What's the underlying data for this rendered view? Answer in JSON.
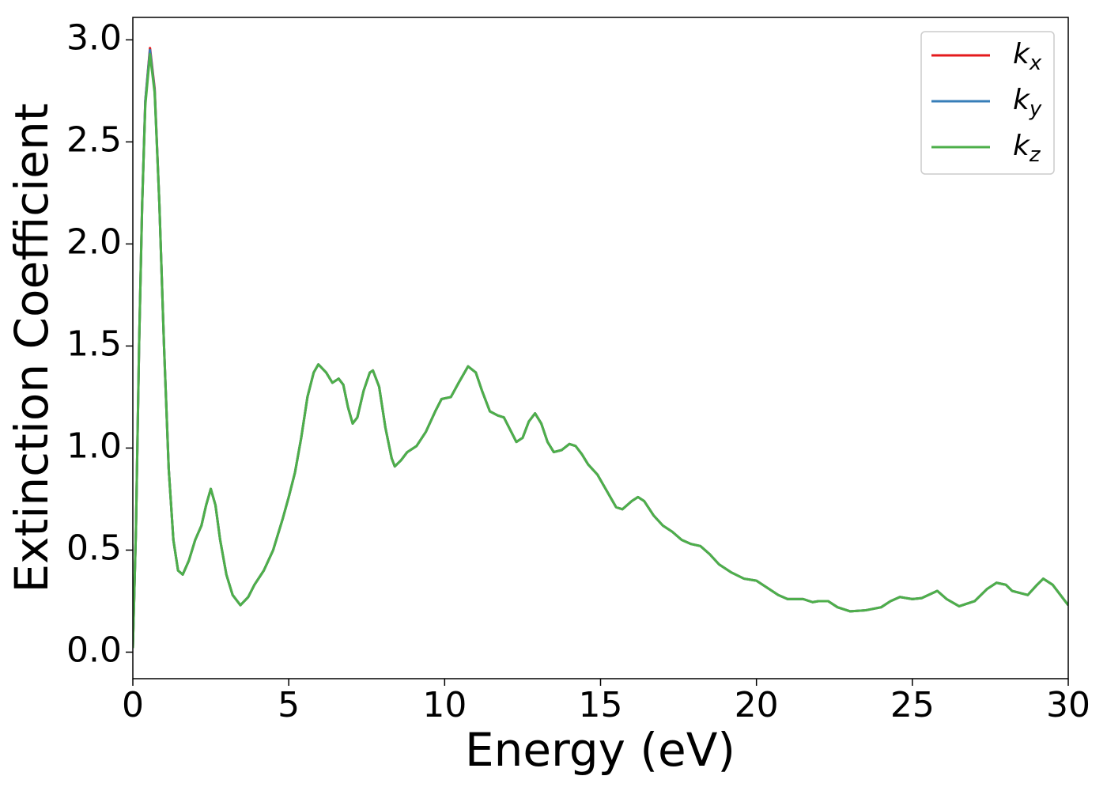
{
  "chart_data": {
    "type": "line",
    "xlabel": "Energy (eV)",
    "ylabel": "Extinction Coefficient",
    "xlim": [
      0,
      30
    ],
    "ylim": [
      -0.13,
      3.11
    ],
    "xticks": [
      0,
      5,
      10,
      15,
      20,
      25,
      30
    ],
    "yticks": [
      {
        "value": 0,
        "label": "0.0"
      },
      0.5,
      {
        "value": 1,
        "label": "1.0"
      },
      1.5,
      {
        "value": 2,
        "label": "2.0"
      },
      2.5,
      {
        "value": 3,
        "label": "3.0"
      }
    ],
    "legend": "upper right",
    "x": [
      0,
      0.1,
      0.2,
      0.3,
      0.4,
      0.55,
      0.7,
      0.85,
      1.0,
      1.15,
      1.3,
      1.45,
      1.6,
      1.8,
      2.0,
      2.2,
      2.35,
      2.5,
      2.65,
      2.8,
      3.0,
      3.2,
      3.45,
      3.7,
      3.9,
      4.2,
      4.5,
      4.8,
      5.0,
      5.2,
      5.4,
      5.6,
      5.8,
      5.95,
      6.2,
      6.4,
      6.6,
      6.75,
      6.9,
      7.05,
      7.2,
      7.4,
      7.6,
      7.7,
      7.9,
      8.1,
      8.3,
      8.4,
      8.6,
      8.8,
      9.1,
      9.4,
      9.7,
      9.9,
      10.2,
      10.45,
      10.75,
      11.0,
      11.2,
      11.45,
      11.7,
      11.9,
      12.1,
      12.3,
      12.5,
      12.7,
      12.9,
      13.1,
      13.3,
      13.5,
      13.75,
      14.0,
      14.2,
      14.4,
      14.6,
      14.9,
      15.2,
      15.5,
      15.7,
      16.0,
      16.2,
      16.4,
      16.7,
      17.0,
      17.3,
      17.6,
      17.9,
      18.2,
      18.5,
      18.8,
      19.2,
      19.6,
      20.0,
      20.3,
      20.7,
      21.0,
      21.5,
      21.8,
      22.0,
      22.3,
      22.6,
      23.0,
      23.5,
      24.0,
      24.3,
      24.6,
      25.0,
      25.3,
      25.8,
      26.1,
      26.5,
      27.0,
      27.4,
      27.7,
      28.0,
      28.2,
      28.7,
      29.0,
      29.2,
      29.5,
      29.8,
      30.0
    ],
    "series": [
      {
        "name": "k_x",
        "color": "#e41a1c",
        "values": [
          0.02,
          0.6,
          1.5,
          2.2,
          2.7,
          2.96,
          2.76,
          2.2,
          1.5,
          0.9,
          0.55,
          0.4,
          0.38,
          0.45,
          0.55,
          0.62,
          0.72,
          0.8,
          0.72,
          0.55,
          0.38,
          0.28,
          0.23,
          0.27,
          0.33,
          0.4,
          0.5,
          0.65,
          0.76,
          0.88,
          1.05,
          1.25,
          1.37,
          1.41,
          1.37,
          1.32,
          1.34,
          1.31,
          1.2,
          1.12,
          1.15,
          1.28,
          1.37,
          1.38,
          1.3,
          1.1,
          0.95,
          0.91,
          0.94,
          0.98,
          1.01,
          1.08,
          1.18,
          1.24,
          1.25,
          1.32,
          1.4,
          1.37,
          1.28,
          1.18,
          1.16,
          1.15,
          1.09,
          1.03,
          1.05,
          1.13,
          1.17,
          1.12,
          1.03,
          0.98,
          0.99,
          1.02,
          1.01,
          0.97,
          0.92,
          0.87,
          0.79,
          0.71,
          0.7,
          0.74,
          0.76,
          0.74,
          0.67,
          0.62,
          0.59,
          0.55,
          0.53,
          0.52,
          0.48,
          0.43,
          0.39,
          0.36,
          0.35,
          0.32,
          0.28,
          0.26,
          0.26,
          0.245,
          0.25,
          0.25,
          0.22,
          0.2,
          0.205,
          0.22,
          0.25,
          0.27,
          0.26,
          0.265,
          0.3,
          0.26,
          0.225,
          0.25,
          0.31,
          0.34,
          0.33,
          0.3,
          0.28,
          0.33,
          0.36,
          0.33,
          0.27,
          0.23
        ]
      },
      {
        "name": "k_y",
        "color": "#377eb8",
        "values": [
          0.02,
          0.6,
          1.5,
          2.2,
          2.7,
          2.95,
          2.75,
          2.2,
          1.5,
          0.9,
          0.55,
          0.4,
          0.38,
          0.45,
          0.55,
          0.62,
          0.72,
          0.8,
          0.72,
          0.55,
          0.38,
          0.28,
          0.23,
          0.27,
          0.33,
          0.4,
          0.5,
          0.65,
          0.76,
          0.88,
          1.05,
          1.25,
          1.37,
          1.41,
          1.37,
          1.32,
          1.34,
          1.31,
          1.2,
          1.12,
          1.15,
          1.28,
          1.37,
          1.38,
          1.3,
          1.1,
          0.95,
          0.91,
          0.94,
          0.98,
          1.01,
          1.08,
          1.18,
          1.24,
          1.25,
          1.32,
          1.4,
          1.37,
          1.28,
          1.18,
          1.16,
          1.15,
          1.09,
          1.03,
          1.05,
          1.13,
          1.17,
          1.12,
          1.03,
          0.98,
          0.99,
          1.02,
          1.01,
          0.97,
          0.92,
          0.87,
          0.79,
          0.71,
          0.7,
          0.74,
          0.76,
          0.74,
          0.67,
          0.62,
          0.59,
          0.55,
          0.53,
          0.52,
          0.48,
          0.43,
          0.39,
          0.36,
          0.35,
          0.32,
          0.28,
          0.26,
          0.26,
          0.245,
          0.25,
          0.25,
          0.22,
          0.2,
          0.205,
          0.22,
          0.25,
          0.27,
          0.26,
          0.265,
          0.3,
          0.26,
          0.225,
          0.25,
          0.31,
          0.34,
          0.33,
          0.3,
          0.28,
          0.33,
          0.36,
          0.33,
          0.27,
          0.23
        ]
      },
      {
        "name": "k_z",
        "color": "#4daf4a",
        "values": [
          0.02,
          0.6,
          1.5,
          2.2,
          2.68,
          2.93,
          2.74,
          2.2,
          1.5,
          0.9,
          0.55,
          0.4,
          0.38,
          0.45,
          0.55,
          0.62,
          0.72,
          0.8,
          0.72,
          0.55,
          0.38,
          0.28,
          0.23,
          0.27,
          0.33,
          0.4,
          0.5,
          0.65,
          0.76,
          0.88,
          1.05,
          1.25,
          1.37,
          1.41,
          1.37,
          1.32,
          1.34,
          1.31,
          1.2,
          1.12,
          1.15,
          1.28,
          1.37,
          1.38,
          1.3,
          1.1,
          0.95,
          0.91,
          0.94,
          0.98,
          1.01,
          1.08,
          1.18,
          1.24,
          1.25,
          1.32,
          1.4,
          1.37,
          1.28,
          1.18,
          1.16,
          1.15,
          1.09,
          1.03,
          1.05,
          1.13,
          1.17,
          1.12,
          1.03,
          0.98,
          0.99,
          1.02,
          1.01,
          0.97,
          0.92,
          0.87,
          0.79,
          0.71,
          0.7,
          0.74,
          0.76,
          0.74,
          0.67,
          0.62,
          0.59,
          0.55,
          0.53,
          0.52,
          0.48,
          0.43,
          0.39,
          0.36,
          0.35,
          0.32,
          0.28,
          0.26,
          0.26,
          0.245,
          0.25,
          0.25,
          0.22,
          0.2,
          0.205,
          0.22,
          0.25,
          0.27,
          0.26,
          0.265,
          0.3,
          0.26,
          0.225,
          0.25,
          0.31,
          0.34,
          0.33,
          0.3,
          0.28,
          0.33,
          0.36,
          0.33,
          0.27,
          0.23
        ]
      }
    ]
  }
}
